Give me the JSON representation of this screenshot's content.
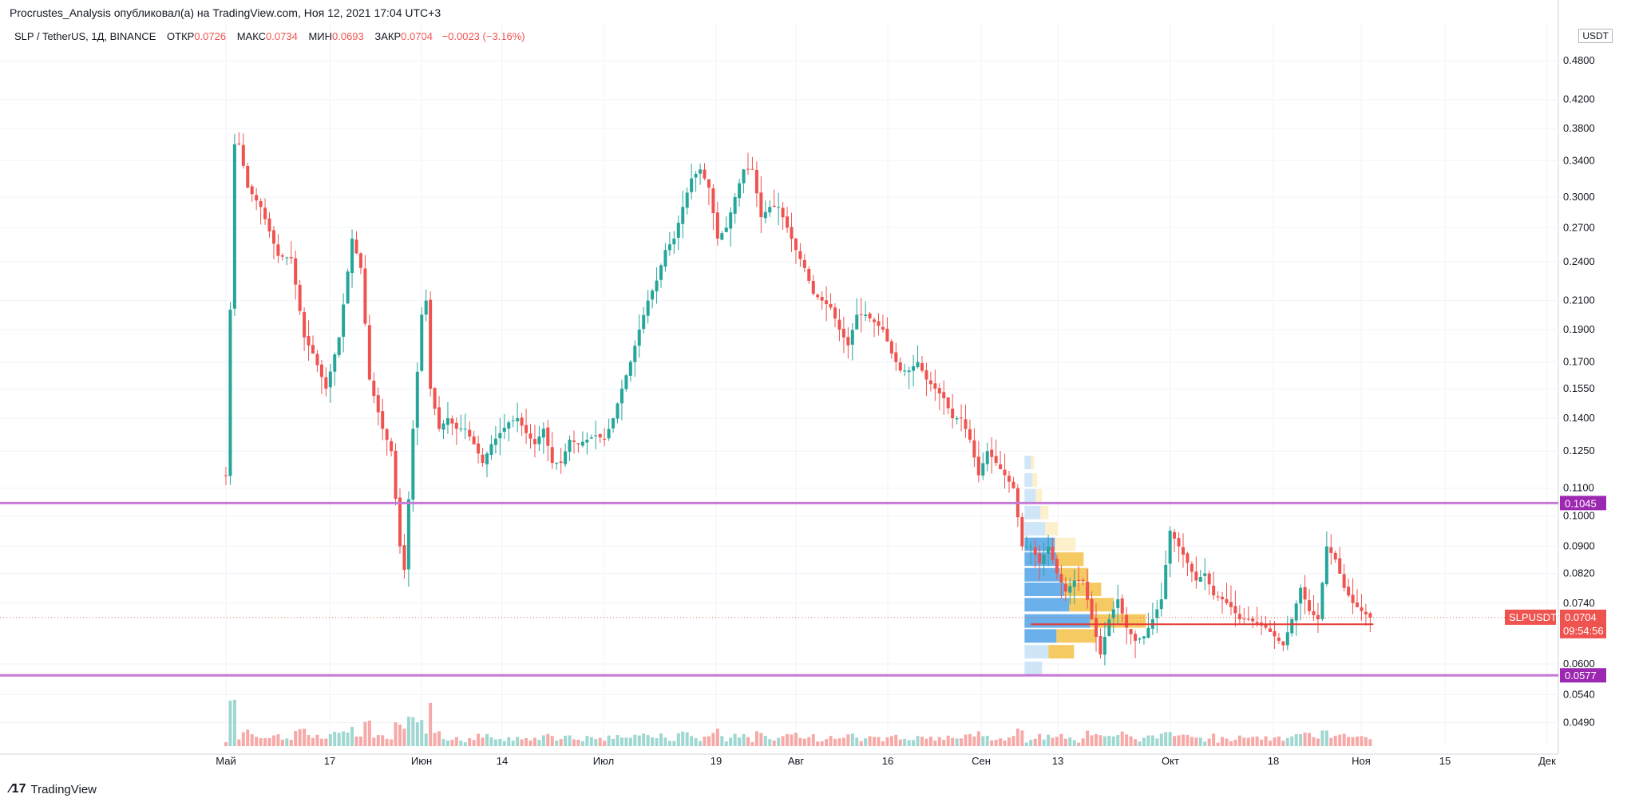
{
  "header": {
    "published": "Procrustes_Analysis опубликовал(а) на TradingView.com, Ноя 12, 2021 17:04 UTC+3"
  },
  "legend": {
    "symbol": "SLP / TetherUS, 1Д, BINANCE",
    "open_label": "ОТКР",
    "open": "0.0726",
    "high_label": "МАКС",
    "high": "0.0734",
    "low_label": "МИН",
    "low": "0.0693",
    "close_label": "ЗАКР",
    "close": "0.0704",
    "change": "−0.0023 (−3.16%)"
  },
  "price_axis": {
    "unit": "USDT"
  },
  "branding": {
    "name": "TradingView"
  },
  "colors": {
    "up": "#26a69a",
    "down": "#ef5350",
    "level": "#c77ad6",
    "vp_blue": "#5aa7e8",
    "vp_orange": "#f5c452"
  },
  "chart_data": {
    "type": "candlestick",
    "yscale": "log",
    "ylim": [
      0.045,
      0.54
    ],
    "y_ticks": [
      "0.4800",
      "0.4200",
      "0.3800",
      "0.3400",
      "0.3000",
      "0.2700",
      "0.2400",
      "0.2100",
      "0.1900",
      "0.1700",
      "0.1550",
      "0.1400",
      "0.1250",
      "0.1100",
      "0.1000",
      "0.0900",
      "0.0820",
      "0.0740",
      "0.0600",
      "0.0540",
      "0.0490"
    ],
    "x_ticks": [
      "Май",
      "17",
      "Июн",
      "14",
      "Июл",
      "19",
      "Авг",
      "16",
      "Сен",
      "13",
      "Окт",
      "18",
      "Ноя",
      "15",
      "Дек"
    ],
    "levels": [
      {
        "label": "0.1045",
        "value": 0.1045
      },
      {
        "label": "0.0577",
        "value": 0.0577
      }
    ],
    "last_price": {
      "symbol": "SLPUSDT",
      "value": "0.0704",
      "countdown": "09:54:56"
    },
    "close_line": 0.0688,
    "anchors": [
      [
        0,
        0.115
      ],
      [
        2,
        0.36
      ],
      [
        3,
        0.36
      ],
      [
        5,
        0.31
      ],
      [
        8,
        0.29
      ],
      [
        12,
        0.245
      ],
      [
        15,
        0.243
      ],
      [
        18,
        0.185
      ],
      [
        20,
        0.175
      ],
      [
        23,
        0.155
      ],
      [
        26,
        0.185
      ],
      [
        29,
        0.26
      ],
      [
        31,
        0.235
      ],
      [
        33,
        0.16
      ],
      [
        36,
        0.135
      ],
      [
        38,
        0.125
      ],
      [
        40,
        0.09
      ],
      [
        41,
        0.083
      ],
      [
        43,
        0.135
      ],
      [
        45,
        0.2
      ],
      [
        46,
        0.21
      ],
      [
        47,
        0.155
      ],
      [
        49,
        0.135
      ],
      [
        51,
        0.14
      ],
      [
        53,
        0.135
      ],
      [
        55,
        0.135
      ],
      [
        57,
        0.128
      ],
      [
        59,
        0.12
      ],
      [
        61,
        0.128
      ],
      [
        63,
        0.133
      ],
      [
        65,
        0.138
      ],
      [
        67,
        0.14
      ],
      [
        69,
        0.133
      ],
      [
        71,
        0.128
      ],
      [
        73,
        0.135
      ],
      [
        75,
        0.12
      ],
      [
        77,
        0.12
      ],
      [
        79,
        0.13
      ],
      [
        81,
        0.128
      ],
      [
        83,
        0.13
      ],
      [
        85,
        0.132
      ],
      [
        87,
        0.13
      ],
      [
        89,
        0.14
      ],
      [
        91,
        0.155
      ],
      [
        93,
        0.17
      ],
      [
        95,
        0.19
      ],
      [
        97,
        0.21
      ],
      [
        99,
        0.225
      ],
      [
        101,
        0.25
      ],
      [
        103,
        0.26
      ],
      [
        105,
        0.29
      ],
      [
        107,
        0.32
      ],
      [
        109,
        0.33
      ],
      [
        111,
        0.31
      ],
      [
        113,
        0.26
      ],
      [
        115,
        0.27
      ],
      [
        117,
        0.3
      ],
      [
        119,
        0.33
      ],
      [
        121,
        0.33
      ],
      [
        123,
        0.28
      ],
      [
        125,
        0.29
      ],
      [
        127,
        0.29
      ],
      [
        129,
        0.27
      ],
      [
        131,
        0.25
      ],
      [
        133,
        0.235
      ],
      [
        135,
        0.215
      ],
      [
        137,
        0.21
      ],
      [
        139,
        0.205
      ],
      [
        141,
        0.19
      ],
      [
        143,
        0.18
      ],
      [
        145,
        0.2
      ],
      [
        147,
        0.2
      ],
      [
        149,
        0.195
      ],
      [
        151,
        0.19
      ],
      [
        153,
        0.175
      ],
      [
        155,
        0.165
      ],
      [
        157,
        0.165
      ],
      [
        159,
        0.17
      ],
      [
        161,
        0.16
      ],
      [
        163,
        0.155
      ],
      [
        165,
        0.15
      ],
      [
        167,
        0.14
      ],
      [
        169,
        0.14
      ],
      [
        171,
        0.13
      ],
      [
        173,
        0.115
      ],
      [
        175,
        0.125
      ],
      [
        177,
        0.12
      ],
      [
        179,
        0.115
      ],
      [
        181,
        0.11
      ],
      [
        183,
        0.09
      ],
      [
        185,
        0.09
      ],
      [
        187,
        0.085
      ],
      [
        189,
        0.09
      ],
      [
        191,
        0.082
      ],
      [
        193,
        0.077
      ],
      [
        195,
        0.08
      ],
      [
        197,
        0.08
      ],
      [
        199,
        0.07
      ],
      [
        201,
        0.062
      ],
      [
        203,
        0.07
      ],
      [
        205,
        0.075
      ],
      [
        207,
        0.068
      ],
      [
        209,
        0.065
      ],
      [
        211,
        0.066
      ],
      [
        213,
        0.07
      ],
      [
        215,
        0.075
      ],
      [
        217,
        0.095
      ],
      [
        219,
        0.09
      ],
      [
        221,
        0.085
      ],
      [
        223,
        0.08
      ],
      [
        225,
        0.082
      ],
      [
        227,
        0.076
      ],
      [
        229,
        0.075
      ],
      [
        231,
        0.073
      ],
      [
        233,
        0.07
      ],
      [
        235,
        0.07
      ],
      [
        237,
        0.069
      ],
      [
        239,
        0.068
      ],
      [
        241,
        0.066
      ],
      [
        243,
        0.064
      ],
      [
        245,
        0.07
      ],
      [
        247,
        0.078
      ],
      [
        249,
        0.072
      ],
      [
        251,
        0.07
      ],
      [
        253,
        0.09
      ],
      [
        255,
        0.086
      ],
      [
        257,
        0.078
      ],
      [
        259,
        0.074
      ],
      [
        261,
        0.072
      ],
      [
        263,
        0.0704
      ]
    ],
    "volume_profile": [
      {
        "price": 0.059,
        "blue": 22,
        "orange": 0
      },
      {
        "price": 0.0625,
        "blue": 30,
        "orange": 32
      },
      {
        "price": 0.066,
        "blue": 40,
        "orange": 50
      },
      {
        "price": 0.0695,
        "blue": 82,
        "orange": 70
      },
      {
        "price": 0.0735,
        "blue": 56,
        "orange": 56
      },
      {
        "price": 0.0775,
        "blue": 50,
        "orange": 46
      },
      {
        "price": 0.0815,
        "blue": 44,
        "orange": 36
      },
      {
        "price": 0.086,
        "blue": 40,
        "orange": 34
      },
      {
        "price": 0.0905,
        "blue": 38,
        "orange": 26
      },
      {
        "price": 0.0955,
        "blue": 26,
        "orange": 16
      },
      {
        "price": 0.101,
        "blue": 20,
        "orange": 10
      },
      {
        "price": 0.107,
        "blue": 14,
        "orange": 8
      },
      {
        "price": 0.113,
        "blue": 10,
        "orange": 6
      },
      {
        "price": 0.12,
        "blue": 8,
        "orange": 4
      }
    ]
  }
}
